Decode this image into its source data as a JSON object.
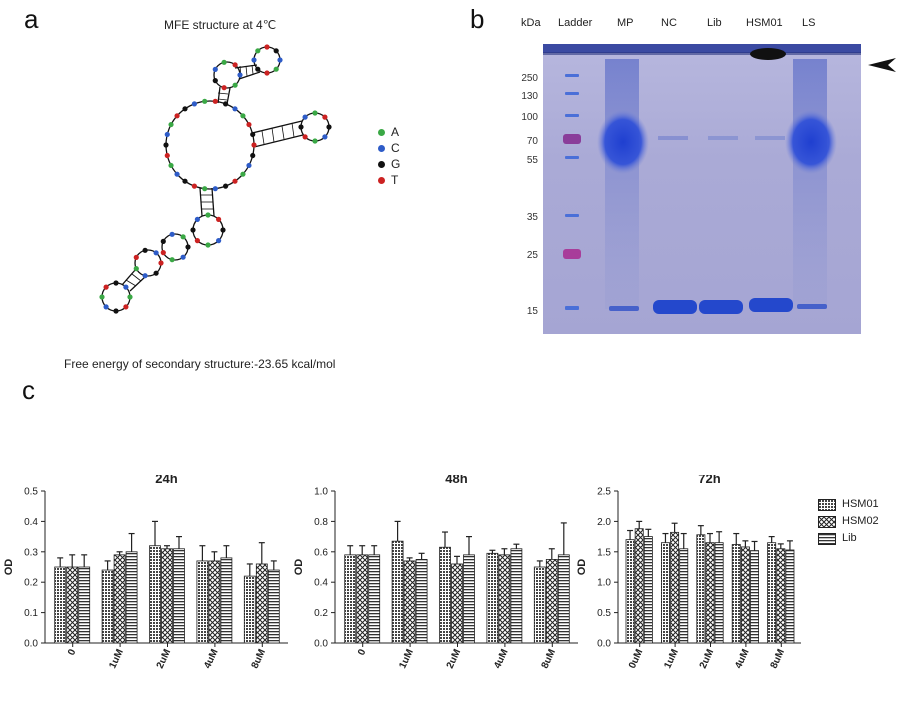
{
  "panel_a": {
    "letter": "a",
    "title": "MFE structure at 4℃",
    "legend": [
      {
        "label": "A",
        "color": "#3aa845"
      },
      {
        "label": "C",
        "color": "#2e5cc8"
      },
      {
        "label": "G",
        "color": "#111111"
      },
      {
        "label": "T",
        "color": "#cc2222"
      }
    ],
    "free_energy": "Free energy of secondary structure:-23.65 kcal/mol"
  },
  "panel_b": {
    "letter": "b",
    "kda_label": "kDa",
    "lanes": [
      "Ladder",
      "MP",
      "NC",
      "Lib",
      "HSM01",
      "LS"
    ],
    "markers": [
      "250",
      "130",
      "100",
      "70",
      "55",
      "35",
      "25",
      "15"
    ]
  },
  "panel_c": {
    "letter": "c",
    "legend": [
      "HSM01",
      "HSM02",
      "Lib"
    ]
  },
  "chart_data": [
    {
      "type": "bar",
      "title": "24h",
      "ylabel": "OD",
      "ylim": [
        0,
        0.5
      ],
      "yticks": [
        "0.0",
        "0.1",
        "0.2",
        "0.3",
        "0.4",
        "0.5"
      ],
      "categories": [
        "0",
        "1uM",
        "2uM",
        "4uM",
        "8uM"
      ],
      "series": [
        {
          "name": "HSM01",
          "values": [
            0.25,
            0.24,
            0.32,
            0.27,
            0.22
          ],
          "err": [
            0.03,
            0.03,
            0.08,
            0.05,
            0.04
          ]
        },
        {
          "name": "HSM02",
          "values": [
            0.25,
            0.29,
            0.31,
            0.27,
            0.26
          ],
          "err": [
            0.04,
            0.01,
            0.01,
            0.03,
            0.07
          ]
        },
        {
          "name": "Lib",
          "values": [
            0.25,
            0.3,
            0.31,
            0.28,
            0.24
          ],
          "err": [
            0.04,
            0.06,
            0.04,
            0.04,
            0.03
          ]
        }
      ]
    },
    {
      "type": "bar",
      "title": "48h",
      "ylabel": "OD",
      "ylim": [
        0,
        1.0
      ],
      "yticks": [
        "0.0",
        "0.2",
        "0.4",
        "0.6",
        "0.8",
        "1.0"
      ],
      "categories": [
        "0",
        "1uM",
        "2uM",
        "4uM",
        "8uM"
      ],
      "series": [
        {
          "name": "HSM01",
          "values": [
            0.58,
            0.67,
            0.63,
            0.59,
            0.5
          ],
          "err": [
            0.06,
            0.13,
            0.1,
            0.02,
            0.04
          ]
        },
        {
          "name": "HSM02",
          "values": [
            0.58,
            0.54,
            0.52,
            0.58,
            0.55
          ],
          "err": [
            0.06,
            0.02,
            0.05,
            0.04,
            0.07
          ]
        },
        {
          "name": "Lib",
          "values": [
            0.58,
            0.55,
            0.58,
            0.62,
            0.58
          ],
          "err": [
            0.06,
            0.04,
            0.12,
            0.03,
            0.21
          ]
        }
      ]
    },
    {
      "type": "bar",
      "title": "72h",
      "ylabel": "OD",
      "ylim": [
        0,
        2.5
      ],
      "yticks": [
        "0.0",
        "0.5",
        "1.0",
        "1.5",
        "2.0",
        "2.5"
      ],
      "categories": [
        "0uM",
        "1uM",
        "2uM",
        "4uM",
        "8uM"
      ],
      "series": [
        {
          "name": "HSM01",
          "values": [
            1.7,
            1.65,
            1.78,
            1.62,
            1.65
          ],
          "err": [
            0.15,
            0.15,
            0.15,
            0.18,
            0.1
          ]
        },
        {
          "name": "HSM02",
          "values": [
            1.88,
            1.82,
            1.65,
            1.58,
            1.55
          ],
          "err": [
            0.12,
            0.15,
            0.15,
            0.1,
            0.08
          ]
        },
        {
          "name": "Lib",
          "values": [
            1.75,
            1.55,
            1.65,
            1.52,
            1.53
          ],
          "err": [
            0.12,
            0.25,
            0.18,
            0.15,
            0.15
          ]
        }
      ]
    }
  ]
}
